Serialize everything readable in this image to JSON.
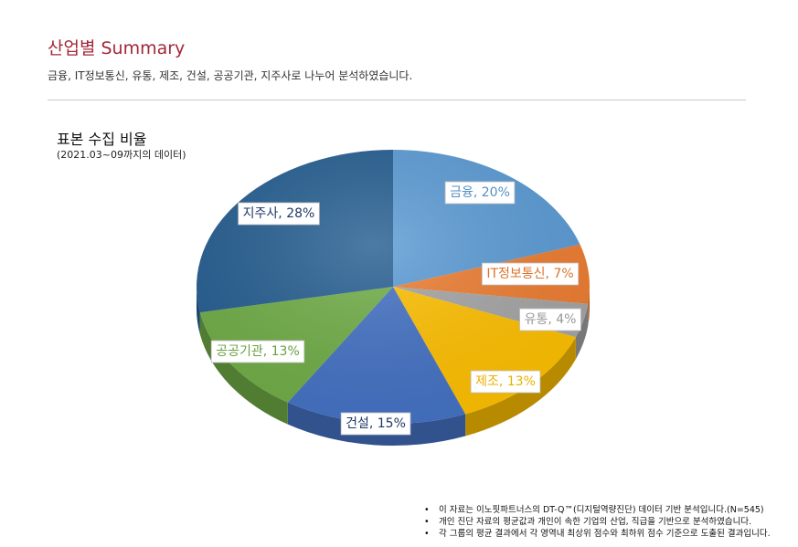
{
  "header": {
    "title": "산업별 Summary",
    "subtitle": "금융, IT정보통신, 유통, 제조, 건설, 공공기관, 지주사로 나누어 분석하였습니다."
  },
  "chart_data": {
    "type": "pie",
    "title": "표본 수집 비율",
    "subtitle": "(2021.03~09까지의 데이터)",
    "legend": "none",
    "slices": [
      {
        "label": "금융",
        "value": 20,
        "display": "금융, 20%",
        "color": "#5b9bd5"
      },
      {
        "label": "IT정보통신",
        "value": 7,
        "display": "IT정보통신, 7%",
        "color": "#ed7d31"
      },
      {
        "label": "유통",
        "value": 4,
        "display": "유통, 4%",
        "color": "#a5a5a5"
      },
      {
        "label": "제조",
        "value": 13,
        "display": "제조, 13%",
        "color": "#ffc000"
      },
      {
        "label": "건설",
        "value": 15,
        "display": "건설, 15%",
        "color": "#4472c4"
      },
      {
        "label": "공공기관",
        "value": 13,
        "display": "공공기관, 13%",
        "color": "#70ad47"
      },
      {
        "label": "지주사",
        "value": 28,
        "display": "지주사, 28%",
        "color": "#255e91"
      }
    ]
  },
  "footnotes": [
    "이 자료는 이노핏파트너스의 DT-Q™(디지털역량진단) 데이터 기반 분석입니다.(N=545)",
    "개인 진단 자료의 평균값과 개인이 속한 기업의 산업, 직급을 기반으로 분석하였습니다.",
    "각 그룹의 평균 결과에서 각 영역내 최상위 점수와 최하위 점수 기준으로 도출된 결과입니다."
  ]
}
